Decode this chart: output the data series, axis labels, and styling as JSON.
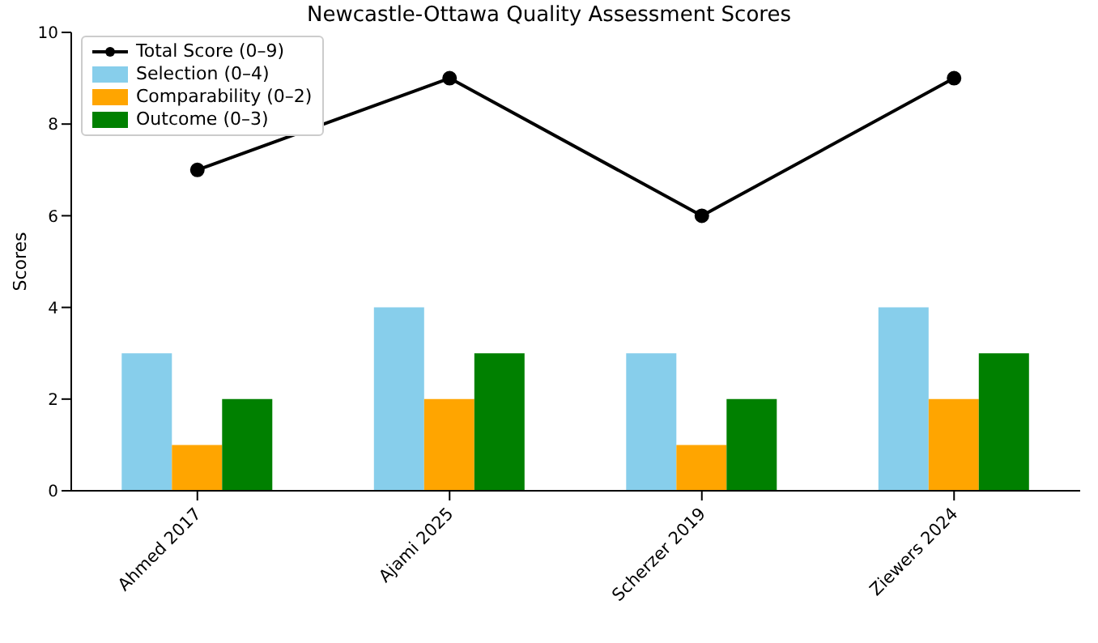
{
  "chart_data": {
    "type": "bar",
    "title": "Newcastle-Ottawa Quality Assessment Scores",
    "ylabel": "Scores",
    "categories": [
      "Ahmed 2017",
      "Ajami 2025",
      "Scherzer 2019",
      "Ziewers 2024"
    ],
    "series": [
      {
        "name": "Total Score (0–9)",
        "type": "line",
        "color": "#000000",
        "values": [
          7,
          9,
          6,
          9
        ]
      },
      {
        "name": "Selection (0–4)",
        "color": "#87ceeb",
        "values": [
          3,
          4,
          3,
          4
        ]
      },
      {
        "name": "Comparability (0–2)",
        "color": "#ffa500",
        "values": [
          1,
          2,
          1,
          2
        ]
      },
      {
        "name": "Outcome (0–3)",
        "color": "#008000",
        "values": [
          2,
          3,
          2,
          3
        ]
      }
    ],
    "ylim": [
      0,
      10
    ],
    "yticks": [
      0,
      2,
      4,
      6,
      8,
      10
    ],
    "grid": false,
    "legend": "top left",
    "marker": "circle",
    "line_style": "solid"
  }
}
